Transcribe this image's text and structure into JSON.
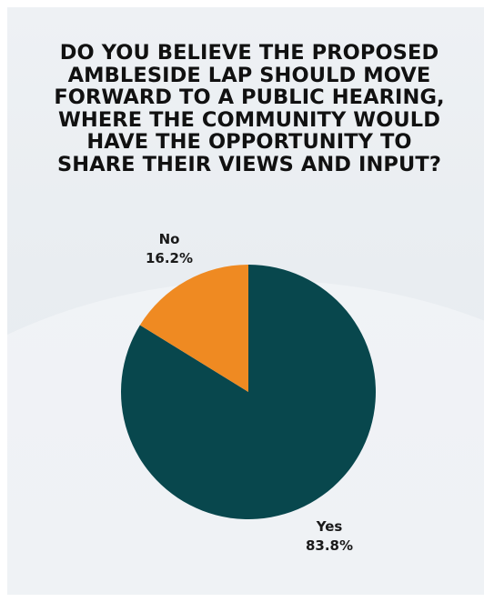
{
  "chart_data": {
    "type": "pie",
    "title": "DO YOU BELIEVE THE PROPOSED AMBLESIDE LAP SHOULD MOVE FORWARD TO A PUBLIC HEARING, WHERE THE COMMUNITY WOULD HAVE THE OPPORTUNITY TO SHARE THEIR VIEWS AND INPUT?",
    "title_lines": [
      "DO YOU BELIEVE THE PROPOSED",
      "AMBLESIDE LAP SHOULD MOVE",
      "FORWARD TO A PUBLIC HEARING,",
      "WHERE THE COMMUNITY WOULD",
      "HAVE THE OPPORTUNITY TO",
      "SHARE THEIR VIEWS AND INPUT?"
    ],
    "slices": [
      {
        "label": "Yes",
        "value": 83.8,
        "value_label": "83.8%",
        "color": "#08474d"
      },
      {
        "label": "No",
        "value": 16.2,
        "value_label": "16.2%",
        "color": "#ef8a22"
      }
    ],
    "start_angle": "top, clockwise"
  }
}
